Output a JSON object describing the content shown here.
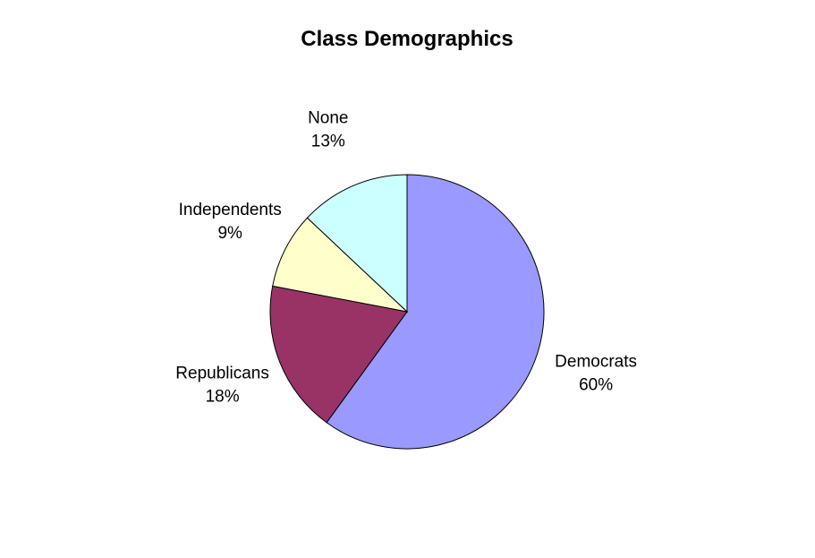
{
  "chart_data": {
    "type": "pie",
    "title": "Class Demographics",
    "start_angle_deg": 0,
    "direction": "clockwise",
    "slices": [
      {
        "label": "Democrats",
        "percent_label": "60%",
        "value": 60,
        "color": "#9999ff"
      },
      {
        "label": "Republicans",
        "percent_label": "18%",
        "value": 18,
        "color": "#993366"
      },
      {
        "label": "Independents",
        "percent_label": "9%",
        "value": 9,
        "color": "#ffffcc"
      },
      {
        "label": "None",
        "percent_label": "13%",
        "value": 13,
        "color": "#ccffff"
      }
    ]
  }
}
